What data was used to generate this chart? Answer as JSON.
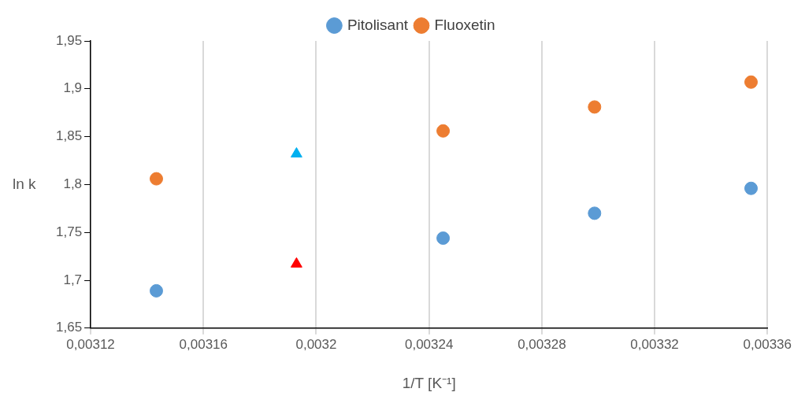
{
  "chart_data": {
    "type": "scatter",
    "xlabel": "1/T [K⁻¹]",
    "ylabel": "ln k",
    "series": [
      {
        "name": "Pitolisant",
        "color": "#5b9bd5",
        "marker": "circle",
        "x": [
          0.0031433,
          0.003245,
          0.0032987,
          0.0033542
        ],
        "values": [
          1.689,
          1.744,
          1.77,
          1.796
        ]
      },
      {
        "name": "Fluoxetin",
        "color": "#ed7d31",
        "marker": "circle",
        "x": [
          0.0031433,
          0.003245,
          0.0032987,
          0.0033542
        ],
        "values": [
          1.806,
          1.856,
          1.881,
          1.907
        ]
      },
      {
        "color": "#00b0f0",
        "marker": "triangle",
        "x": [
          0.003193
        ],
        "values": [
          1.832
        ]
      },
      {
        "color": "#ff0000",
        "marker": "triangle",
        "x": [
          0.003193
        ],
        "values": [
          1.717
        ]
      }
    ],
    "xlim": [
      0.00312,
      0.00336
    ],
    "xticks": [
      {
        "value": 0.00312,
        "label": "0,00312"
      },
      {
        "value": 0.00316,
        "label": "0,00316"
      },
      {
        "value": 0.0032,
        "label": "0,0032"
      },
      {
        "value": 0.00324,
        "label": "0,00324"
      },
      {
        "value": 0.00328,
        "label": "0,00328"
      },
      {
        "value": 0.00332,
        "label": "0,00332"
      },
      {
        "value": 0.00336,
        "label": "0,00336"
      }
    ],
    "ylim": [
      1.65,
      1.95
    ],
    "yticks": [
      {
        "value": 1.65,
        "label": "1,65"
      },
      {
        "value": 1.7,
        "label": "1,7"
      },
      {
        "value": 1.75,
        "label": "1,75"
      },
      {
        "value": 1.8,
        "label": "1,8"
      },
      {
        "value": 1.85,
        "label": "1,85"
      },
      {
        "value": 1.9,
        "label": "1,9"
      },
      {
        "value": 1.95,
        "label": "1,95"
      }
    ],
    "grid": "x",
    "legend": "top"
  }
}
